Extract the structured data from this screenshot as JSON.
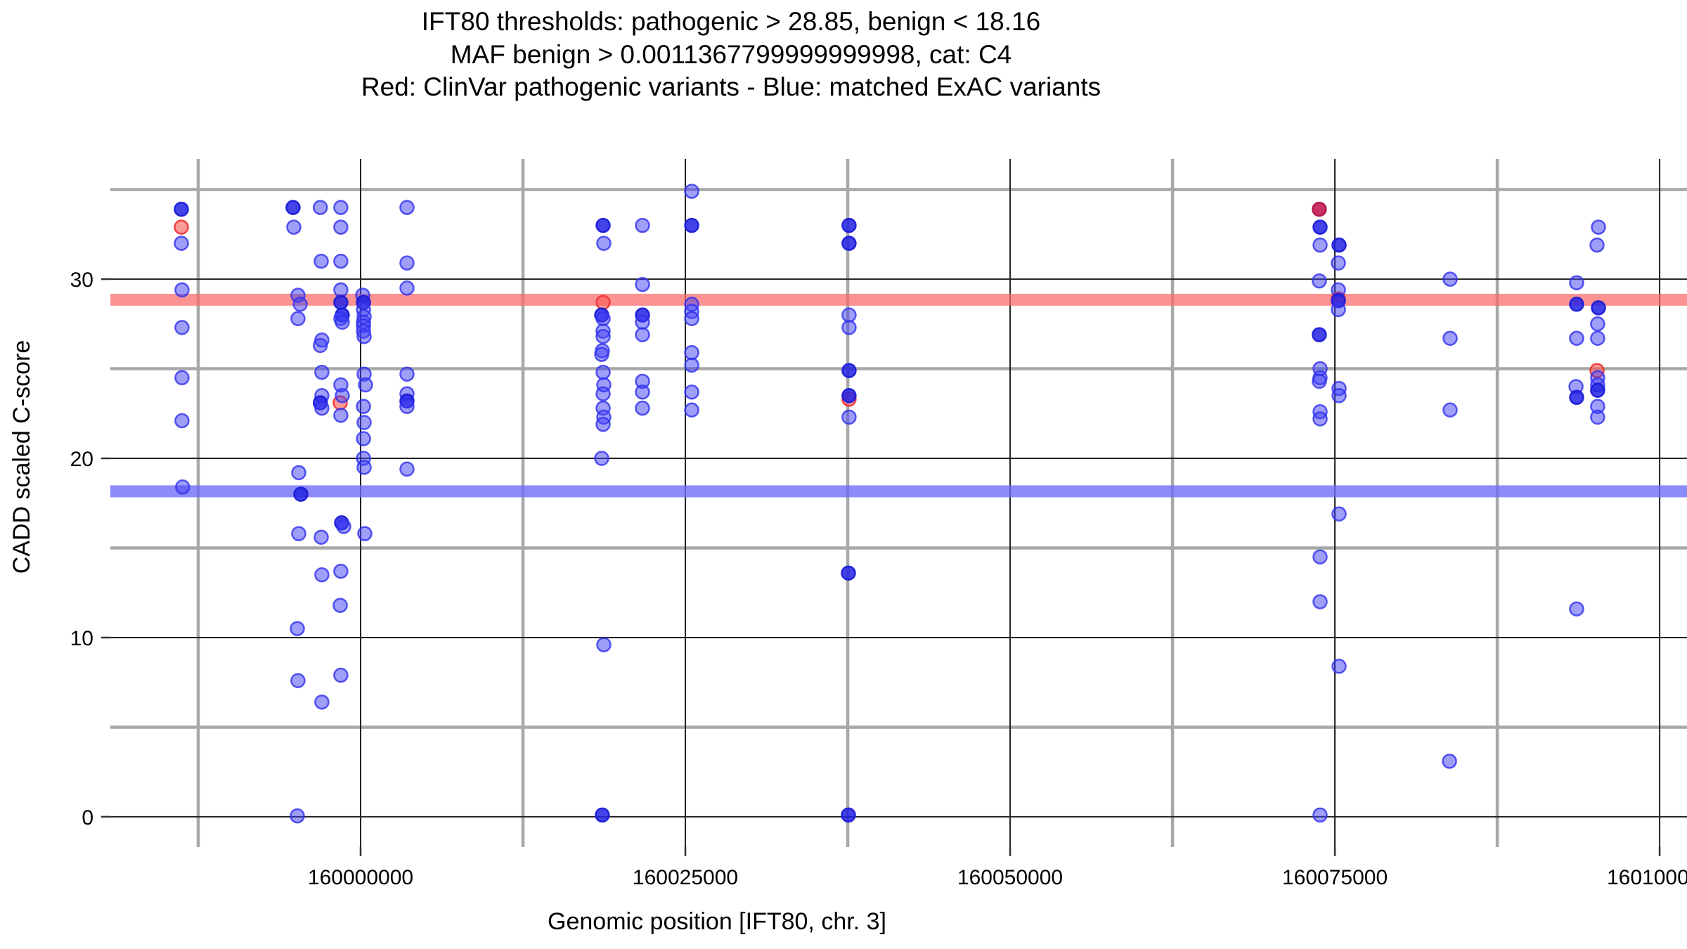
{
  "chart_data": {
    "type": "scatter",
    "title_lines": [
      "IFT80 thresholds: pathogenic > 28.85, benign < 18.16",
      "MAF benign > 0.0011367799999999998, cat: C4",
      "Red: ClinVar pathogenic variants - Blue: matched ExAC variants"
    ],
    "xlabel": "Genomic position [IFT80, chr. 3]",
    "ylabel": "CADD scaled C-score",
    "gene": "IFT80",
    "chromosome": "chr. 3",
    "category": "C4",
    "thresholds": {
      "pathogenic_cadd": 28.85,
      "benign_cadd": 18.16,
      "benign_maf": "0.0011367799999999998",
      "pathogenic_band_color": "#f96969",
      "benign_band_color": "#6a6af7"
    },
    "xlim": [
      159980737,
      160102106
    ],
    "ylim": [
      -1.69,
      36.71
    ],
    "x_ticks": [
      {
        "value": 160000000,
        "label": "160000000"
      },
      {
        "value": 160025000,
        "label": "160025000"
      },
      {
        "value": 160050000,
        "label": "160050000"
      },
      {
        "value": 160075000,
        "label": "160075000"
      },
      {
        "value": 160100000,
        "label": "160100000"
      }
    ],
    "y_ticks": [
      {
        "value": 0,
        "label": "0"
      },
      {
        "value": 10,
        "label": "10"
      },
      {
        "value": 20,
        "label": "20"
      },
      {
        "value": 30,
        "label": "30"
      }
    ],
    "x_minor_gridlines": [
      159987500,
      160012500,
      160037500,
      160062500,
      160087500
    ],
    "y_minor_gridlines": [
      5,
      15,
      25,
      35
    ],
    "grid": {
      "major_color": "#222222",
      "minor_color": "#a8a8a8"
    },
    "legend": {
      "red": "ClinVar pathogenic variants",
      "blue": "matched ExAC variants",
      "position": "in title"
    },
    "point_colors": {
      "blue_fill": "rgba(64,64,245,0.5)",
      "blue_stroke": "rgba(48,48,238,0.8)",
      "blue_dark_fill": "rgba(34,34,228,0.85)",
      "blue_dark_stroke": "rgba(28,28,215,0.95)",
      "red_fill": "rgba(250,85,85,0.6)",
      "red_stroke": "rgba(240,50,50,0.9)",
      "red_dark_fill": "rgba(195,25,85,0.9)",
      "red_dark_stroke": "rgba(180,20,75,0.95)"
    },
    "series": [
      {
        "name": "ClinVar pathogenic variants",
        "color": "red",
        "points": [
          [
            159986200,
            32.9,
            0
          ],
          [
            159998430,
            23.1,
            0
          ],
          [
            160018670,
            28.7,
            0
          ],
          [
            160037600,
            23.3,
            0
          ],
          [
            160073800,
            33.9,
            1
          ],
          [
            160075270,
            28.9,
            0
          ],
          [
            160095180,
            24.9,
            0
          ]
        ]
      },
      {
        "name": "matched ExAC variants",
        "color": "blue",
        "points": [
          [
            159986200,
            33.9,
            1
          ],
          [
            159986200,
            32.0,
            0
          ],
          [
            159986250,
            29.4,
            0
          ],
          [
            159986250,
            27.3,
            0
          ],
          [
            159986250,
            24.5,
            0
          ],
          [
            159986250,
            22.1,
            0
          ],
          [
            159986300,
            18.4,
            0
          ],
          [
            159994800,
            34.0,
            1
          ],
          [
            159994860,
            32.9,
            0
          ],
          [
            159995180,
            29.1,
            0
          ],
          [
            159995350,
            28.6,
            0
          ],
          [
            159995180,
            27.8,
            0
          ],
          [
            159995240,
            19.2,
            0
          ],
          [
            159995400,
            18.0,
            1
          ],
          [
            159995240,
            15.8,
            0
          ],
          [
            159995130,
            10.5,
            0
          ],
          [
            159995180,
            7.6,
            0
          ],
          [
            159995130,
            0.05,
            0
          ],
          [
            159996900,
            34.0,
            0
          ],
          [
            159996970,
            31.0,
            0
          ],
          [
            159997020,
            26.6,
            0
          ],
          [
            159996900,
            26.3,
            0
          ],
          [
            159997020,
            24.8,
            0
          ],
          [
            159997020,
            23.5,
            0
          ],
          [
            159996900,
            23.1,
            1
          ],
          [
            159997020,
            22.8,
            0
          ],
          [
            159996970,
            15.6,
            0
          ],
          [
            159997020,
            13.5,
            0
          ],
          [
            159997020,
            6.4,
            0
          ],
          [
            159998480,
            34.0,
            0
          ],
          [
            159998480,
            32.9,
            0
          ],
          [
            159998480,
            31.0,
            0
          ],
          [
            159998480,
            29.4,
            0
          ],
          [
            159998480,
            28.7,
            1
          ],
          [
            159998590,
            28.0,
            1
          ],
          [
            159998480,
            27.8,
            0
          ],
          [
            159998590,
            27.6,
            0
          ],
          [
            159998480,
            24.1,
            0
          ],
          [
            159998590,
            23.5,
            0
          ],
          [
            159998480,
            22.4,
            0
          ],
          [
            159998540,
            16.4,
            1
          ],
          [
            159998700,
            16.2,
            0
          ],
          [
            159998480,
            13.7,
            0
          ],
          [
            159998430,
            11.8,
            0
          ],
          [
            159998480,
            7.9,
            0
          ],
          [
            160000160,
            29.1,
            0
          ],
          [
            160000220,
            28.7,
            1
          ],
          [
            160000220,
            28.3,
            0
          ],
          [
            160000270,
            27.9,
            0
          ],
          [
            160000220,
            27.6,
            0
          ],
          [
            160000220,
            27.4,
            0
          ],
          [
            160000220,
            27.1,
            0
          ],
          [
            160000270,
            26.8,
            0
          ],
          [
            160000270,
            24.7,
            0
          ],
          [
            160000380,
            24.1,
            0
          ],
          [
            160000220,
            22.9,
            0
          ],
          [
            160000270,
            22.0,
            0
          ],
          [
            160000220,
            21.1,
            0
          ],
          [
            160000220,
            20.0,
            0
          ],
          [
            160000270,
            19.5,
            0
          ],
          [
            160000325,
            15.8,
            0
          ],
          [
            160003570,
            34.0,
            0
          ],
          [
            160003570,
            30.9,
            0
          ],
          [
            160003570,
            29.5,
            0
          ],
          [
            160003570,
            24.7,
            0
          ],
          [
            160003570,
            23.6,
            0
          ],
          [
            160003570,
            23.2,
            1
          ],
          [
            160003570,
            22.9,
            0
          ],
          [
            160003570,
            19.4,
            0
          ],
          [
            160018670,
            33.0,
            1
          ],
          [
            160018720,
            32.0,
            0
          ],
          [
            160018560,
            28.0,
            1
          ],
          [
            160018670,
            27.8,
            0
          ],
          [
            160018670,
            27.1,
            0
          ],
          [
            160018670,
            26.8,
            0
          ],
          [
            160018610,
            26.0,
            0
          ],
          [
            160018560,
            25.8,
            0
          ],
          [
            160018670,
            24.8,
            0
          ],
          [
            160018720,
            24.1,
            0
          ],
          [
            160018670,
            23.6,
            0
          ],
          [
            160018670,
            22.8,
            0
          ],
          [
            160018720,
            22.3,
            0
          ],
          [
            160018670,
            21.9,
            0
          ],
          [
            160018560,
            20.0,
            0
          ],
          [
            160018720,
            9.6,
            0
          ],
          [
            160018610,
            0.1,
            1
          ],
          [
            160021700,
            33.0,
            0
          ],
          [
            160021700,
            29.7,
            0
          ],
          [
            160021700,
            28.0,
            1
          ],
          [
            160021700,
            27.6,
            0
          ],
          [
            160021700,
            26.9,
            0
          ],
          [
            160021700,
            24.3,
            0
          ],
          [
            160021700,
            23.7,
            0
          ],
          [
            160021700,
            22.8,
            0
          ],
          [
            160025490,
            34.9,
            0
          ],
          [
            160025490,
            33.0,
            1
          ],
          [
            160025490,
            28.6,
            0
          ],
          [
            160025490,
            28.2,
            0
          ],
          [
            160025490,
            27.8,
            0
          ],
          [
            160025490,
            25.9,
            0
          ],
          [
            160025490,
            25.2,
            0
          ],
          [
            160025490,
            23.7,
            0
          ],
          [
            160025490,
            22.7,
            0
          ],
          [
            160037600,
            33.0,
            1
          ],
          [
            160037600,
            32.0,
            1
          ],
          [
            160037600,
            28.0,
            0
          ],
          [
            160037600,
            27.3,
            0
          ],
          [
            160037600,
            24.9,
            1
          ],
          [
            160037600,
            23.5,
            1
          ],
          [
            160037600,
            22.3,
            0
          ],
          [
            160037550,
            13.6,
            1
          ],
          [
            160037550,
            0.1,
            1
          ],
          [
            160073860,
            32.9,
            1
          ],
          [
            160073860,
            31.9,
            0
          ],
          [
            160073800,
            29.9,
            0
          ],
          [
            160073800,
            26.9,
            1
          ],
          [
            160073860,
            25.0,
            0
          ],
          [
            160073860,
            24.5,
            0
          ],
          [
            160073800,
            24.3,
            0
          ],
          [
            160073860,
            22.6,
            0
          ],
          [
            160073860,
            22.2,
            0
          ],
          [
            160073860,
            14.5,
            0
          ],
          [
            160073860,
            12.0,
            0
          ],
          [
            160073860,
            0.1,
            0
          ],
          [
            160075320,
            31.9,
            1
          ],
          [
            160075270,
            30.9,
            0
          ],
          [
            160075270,
            29.4,
            0
          ],
          [
            160075270,
            28.8,
            1
          ],
          [
            160075270,
            28.3,
            0
          ],
          [
            160075320,
            23.9,
            0
          ],
          [
            160075320,
            23.5,
            0
          ],
          [
            160075320,
            16.9,
            0
          ],
          [
            160075320,
            8.4,
            0
          ],
          [
            160083870,
            30.0,
            0
          ],
          [
            160083870,
            26.7,
            0
          ],
          [
            160083870,
            22.7,
            0
          ],
          [
            160083820,
            3.1,
            0
          ],
          [
            160093610,
            29.8,
            0
          ],
          [
            160093610,
            28.6,
            1
          ],
          [
            160093610,
            26.7,
            0
          ],
          [
            160093560,
            24.0,
            0
          ],
          [
            160093610,
            23.4,
            1
          ],
          [
            160093610,
            11.6,
            0
          ],
          [
            160095290,
            32.9,
            0
          ],
          [
            160095180,
            31.9,
            0
          ],
          [
            160095290,
            28.4,
            1
          ],
          [
            160095230,
            27.5,
            0
          ],
          [
            160095230,
            26.7,
            0
          ],
          [
            160095230,
            24.5,
            0
          ],
          [
            160095230,
            24.1,
            0
          ],
          [
            160095230,
            23.8,
            1
          ],
          [
            160095230,
            22.9,
            0
          ],
          [
            160095230,
            22.3,
            0
          ]
        ]
      }
    ]
  }
}
